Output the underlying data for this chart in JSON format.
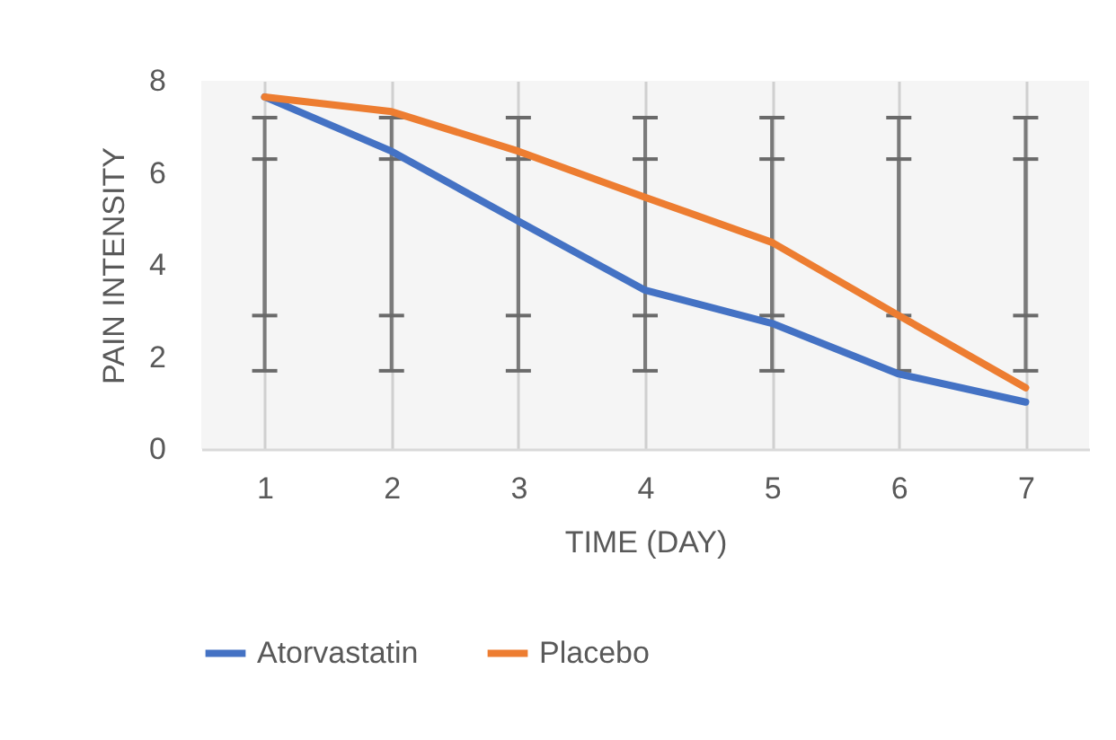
{
  "chart_data": {
    "type": "line",
    "xlabel": "TIME (DAY)",
    "ylabel": "PAIN INTENSITY",
    "categories": [
      "1",
      "2",
      "3",
      "4",
      "5",
      "6",
      "7"
    ],
    "series": [
      {
        "name": "Atorvastatin",
        "color": "#4472c4",
        "values": [
          7.65,
          6.47,
          4.95,
          3.45,
          2.73,
          1.63,
          1.02
        ],
        "errors": [
          [
            1.7,
            6.3
          ],
          [
            1.7,
            6.3
          ],
          [
            1.7,
            6.3
          ],
          [
            1.7,
            6.3
          ],
          [
            1.7,
            6.3
          ],
          [
            1.7,
            6.3
          ],
          [
            1.7,
            6.3
          ]
        ]
      },
      {
        "name": "Placebo",
        "color": "#ed7d31",
        "values": [
          7.65,
          7.33,
          6.47,
          5.47,
          4.49,
          2.9,
          1.33
        ],
        "errors": [
          [
            2.9,
            7.2
          ],
          [
            2.9,
            7.2
          ],
          [
            2.9,
            7.2
          ],
          [
            2.9,
            7.2
          ],
          [
            2.9,
            7.2
          ],
          [
            2.9,
            7.2
          ],
          [
            2.9,
            7.2
          ]
        ]
      }
    ],
    "ylim": [
      0,
      8
    ],
    "yticks": [
      0,
      2,
      4,
      6,
      8
    ],
    "grid": "x",
    "legend": "bottom"
  }
}
